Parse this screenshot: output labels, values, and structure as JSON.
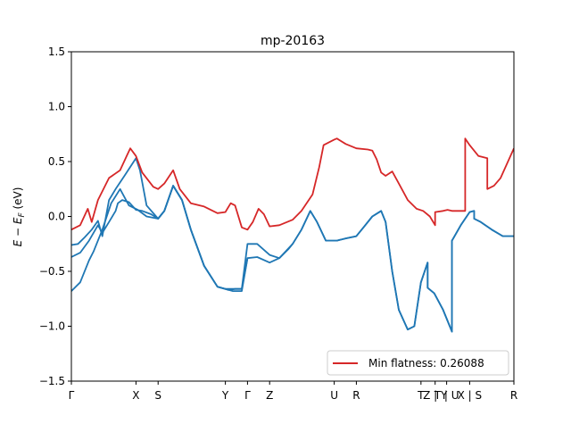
{
  "chart_data": {
    "type": "line",
    "title": "mp-20163",
    "ylabel": "E − E_F (eV)",
    "ylabel_main": "E − E",
    "ylabel_sub": "F",
    "ylabel_unit": " (eV)",
    "xlabel": "",
    "xlim": [
      0,
      100
    ],
    "ylim": [
      -1.5,
      1.5
    ],
    "yticks": [
      1.5,
      1.0,
      0.5,
      0.0,
      -0.5,
      -1.0,
      -1.5
    ],
    "ytick_labels": [
      "1.5",
      "1.0",
      "0.5",
      "0.0",
      "−0.5",
      "−1.0",
      "−1.5"
    ],
    "xticks": [
      {
        "x": 0,
        "label": "Γ"
      },
      {
        "x": 14.6,
        "label": "X"
      },
      {
        "x": 19.6,
        "label": "S"
      },
      {
        "x": 34.8,
        "label": "Y"
      },
      {
        "x": 39.8,
        "label": "Γ"
      },
      {
        "x": 44.8,
        "label": "Z"
      },
      {
        "x": 59.4,
        "label": "U"
      },
      {
        "x": 64.4,
        "label": "R"
      },
      {
        "x": 79.0,
        "label": "T"
      },
      {
        "x": 82.2,
        "label": "Z | Y"
      },
      {
        "x": 84.8,
        "label": "T | U"
      },
      {
        "x": 90.0,
        "label": "X | S"
      },
      {
        "x": 100,
        "label": "R"
      }
    ],
    "legend": {
      "label": "Min flatness: 0.26088",
      "color": "#d62728",
      "placement": "lower right"
    },
    "series": [
      {
        "color": "#d62728",
        "values": [
          [
            0,
            -0.12
          ],
          [
            2,
            -0.08
          ],
          [
            3.7,
            0.07
          ],
          [
            4.6,
            -0.05
          ],
          [
            6,
            0.15
          ],
          [
            8.5,
            0.35
          ],
          [
            11,
            0.42
          ],
          [
            12.5,
            0.55
          ],
          [
            13.3,
            0.62
          ],
          [
            14.6,
            0.55
          ],
          [
            16,
            0.4
          ],
          [
            18.5,
            0.27
          ],
          [
            19.6,
            0.25
          ],
          [
            21,
            0.3
          ],
          [
            23,
            0.42
          ],
          [
            24.5,
            0.25
          ],
          [
            27,
            0.12
          ],
          [
            30,
            0.09
          ],
          [
            33,
            0.03
          ],
          [
            34.8,
            0.04
          ],
          [
            36,
            0.12
          ],
          [
            37,
            0.1
          ],
          [
            38.5,
            -0.1
          ],
          [
            39.8,
            -0.12
          ],
          [
            41,
            -0.05
          ],
          [
            42.3,
            0.07
          ],
          [
            43.5,
            0.02
          ],
          [
            44.8,
            -0.09
          ],
          [
            47,
            -0.08
          ],
          [
            50,
            -0.03
          ],
          [
            52,
            0.05
          ],
          [
            54.5,
            0.2
          ],
          [
            56,
            0.45
          ],
          [
            57,
            0.65
          ],
          [
            59.4,
            0.7
          ],
          [
            60,
            0.71
          ],
          [
            62,
            0.66
          ],
          [
            64.4,
            0.62
          ],
          [
            67,
            0.61
          ],
          [
            68,
            0.6
          ],
          [
            69,
            0.52
          ],
          [
            70,
            0.4
          ],
          [
            71,
            0.37
          ],
          [
            72.5,
            0.41
          ],
          [
            74,
            0.3
          ],
          [
            76,
            0.15
          ],
          [
            78,
            0.07
          ],
          [
            79.5,
            0.05
          ],
          [
            81,
            0.0
          ],
          [
            82.2,
            -0.08
          ],
          [
            82.2,
            0.04
          ],
          [
            84,
            0.05
          ],
          [
            85,
            0.06
          ],
          [
            86,
            0.05
          ],
          [
            89,
            0.05
          ],
          [
            89,
            0.71
          ],
          [
            90,
            0.65
          ],
          [
            92,
            0.55
          ],
          [
            94,
            0.53
          ],
          [
            94,
            0.25
          ],
          [
            95.5,
            0.28
          ],
          [
            97,
            0.35
          ],
          [
            100,
            0.62
          ]
        ]
      },
      {
        "color": "#1f77b4",
        "values": [
          [
            0,
            -0.26
          ],
          [
            1.5,
            -0.25
          ],
          [
            3,
            -0.19
          ],
          [
            4.6,
            -0.12
          ],
          [
            6,
            -0.04
          ],
          [
            7,
            -0.18
          ],
          [
            8.5,
            0.15
          ],
          [
            10,
            0.25
          ],
          [
            12,
            0.37
          ],
          [
            14.6,
            0.53
          ],
          [
            15.5,
            0.42
          ],
          [
            17,
            0.1
          ],
          [
            19.6,
            -0.02
          ],
          [
            21,
            0.05
          ],
          [
            23,
            0.28
          ],
          [
            25,
            0.15
          ],
          [
            27,
            -0.12
          ],
          [
            30,
            -0.45
          ],
          [
            33,
            -0.64
          ],
          [
            34.8,
            -0.66
          ],
          [
            37,
            -0.66
          ],
          [
            38.5,
            -0.66
          ],
          [
            39.8,
            -0.38
          ],
          [
            42,
            -0.37
          ],
          [
            44.8,
            -0.42
          ],
          [
            47,
            -0.38
          ],
          [
            50,
            -0.25
          ],
          [
            52,
            -0.12
          ],
          [
            54,
            0.05
          ],
          [
            55.5,
            -0.05
          ],
          [
            57.5,
            -0.22
          ],
          [
            60,
            -0.22
          ],
          [
            62,
            -0.2
          ],
          [
            64.4,
            -0.18
          ],
          [
            66,
            -0.1
          ],
          [
            68,
            0.0
          ],
          [
            70,
            0.05
          ],
          [
            71,
            -0.05
          ],
          [
            72.5,
            -0.5
          ],
          [
            74,
            -0.85
          ],
          [
            76,
            -1.03
          ],
          [
            77.5,
            -1.0
          ],
          [
            79,
            -0.6
          ],
          [
            80.5,
            -0.42
          ],
          [
            80.5,
            -0.65
          ],
          [
            82,
            -0.7
          ],
          [
            84,
            -0.85
          ],
          [
            86,
            -1.05
          ],
          [
            86,
            -0.22
          ],
          [
            88,
            -0.08
          ],
          [
            90,
            0.04
          ],
          [
            91,
            0.05
          ],
          [
            91,
            -0.02
          ],
          [
            92.5,
            -0.05
          ],
          [
            95,
            -0.12
          ],
          [
            97.5,
            -0.18
          ],
          [
            100,
            -0.18
          ]
        ]
      },
      {
        "color": "#1f77b4",
        "values": [
          [
            0,
            -0.37
          ],
          [
            2,
            -0.33
          ],
          [
            4,
            -0.22
          ],
          [
            6,
            -0.08
          ],
          [
            7,
            -0.15
          ],
          [
            8.5,
            -0.05
          ],
          [
            10,
            0.05
          ],
          [
            10.5,
            0.12
          ],
          [
            11.5,
            0.15
          ],
          [
            13,
            0.13
          ],
          [
            14.6,
            0.06
          ],
          [
            16,
            0.05
          ],
          [
            18,
            0.02
          ],
          [
            19.6,
            -0.02
          ],
          [
            21,
            0.05
          ],
          [
            23,
            0.28
          ],
          [
            25,
            0.15
          ],
          [
            27,
            -0.12
          ],
          [
            30,
            -0.45
          ],
          [
            33,
            -0.64
          ],
          [
            34.8,
            -0.66
          ],
          [
            35.5,
            -0.67
          ],
          [
            37,
            -0.66
          ],
          [
            38.5,
            -0.66
          ],
          [
            39.8,
            -0.25
          ],
          [
            42,
            -0.25
          ],
          [
            44.8,
            -0.35
          ],
          [
            47,
            -0.38
          ],
          [
            49,
            -0.3
          ],
          [
            50,
            -0.25
          ],
          [
            52,
            -0.12
          ],
          [
            54,
            0.05
          ],
          [
            55.5,
            -0.05
          ],
          [
            57.5,
            -0.22
          ],
          [
            60,
            -0.22
          ],
          [
            62,
            -0.2
          ],
          [
            64.4,
            -0.18
          ],
          [
            66,
            -0.1
          ],
          [
            68,
            0.0
          ],
          [
            70,
            0.05
          ],
          [
            71,
            -0.05
          ],
          [
            72.5,
            -0.5
          ],
          [
            74,
            -0.85
          ],
          [
            76,
            -1.03
          ],
          [
            77.5,
            -1.0
          ],
          [
            79,
            -0.6
          ],
          [
            80.5,
            -0.42
          ],
          [
            80.5,
            -0.65
          ],
          [
            82,
            -0.7
          ],
          [
            84,
            -0.85
          ],
          [
            86,
            -1.05
          ],
          [
            86,
            -0.22
          ],
          [
            88,
            -0.08
          ],
          [
            90,
            0.04
          ],
          [
            91,
            0.05
          ],
          [
            91,
            -0.02
          ],
          [
            92.5,
            -0.05
          ],
          [
            95,
            -0.12
          ],
          [
            97.5,
            -0.18
          ],
          [
            100,
            -0.18
          ]
        ]
      },
      {
        "color": "#1f77b4",
        "values": [
          [
            0,
            -0.68
          ],
          [
            2,
            -0.6
          ],
          [
            4,
            -0.4
          ],
          [
            5,
            -0.32
          ],
          [
            7,
            -0.12
          ],
          [
            9,
            0.12
          ],
          [
            11,
            0.25
          ],
          [
            13,
            0.1
          ],
          [
            15,
            0.06
          ],
          [
            17,
            0.0
          ],
          [
            19.6,
            -0.02
          ],
          [
            21,
            0.05
          ],
          [
            23,
            0.28
          ],
          [
            25,
            0.15
          ],
          [
            27,
            -0.12
          ],
          [
            30,
            -0.45
          ],
          [
            33,
            -0.64
          ],
          [
            34.8,
            -0.66
          ],
          [
            36.5,
            -0.68
          ],
          [
            38.5,
            -0.68
          ],
          [
            39.8,
            -0.38
          ]
        ]
      }
    ]
  }
}
